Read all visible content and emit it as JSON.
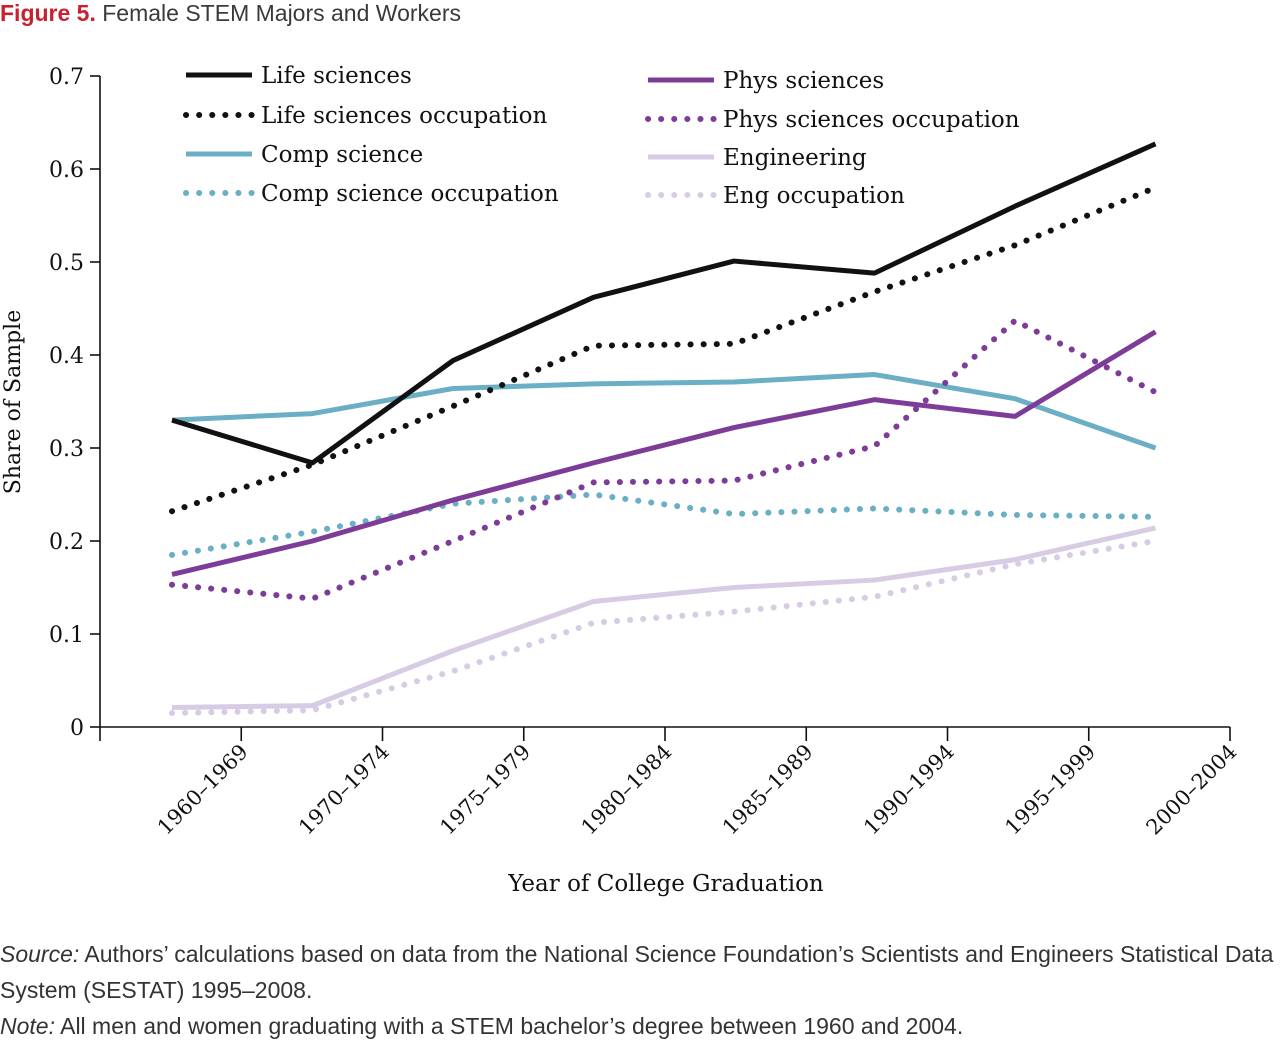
{
  "figure": {
    "number": "Figure 5.",
    "title": "Female STEM Majors and Workers"
  },
  "notes": {
    "source_label": "Source:",
    "source_text": "Authors’ calculations based on data from the National Science Foundation’s Scientists and Engineers Statistical Data System (SESTAT) 1995–2008.",
    "note_label": "Note:",
    "note_text": "All men and women graduating with a STEM bachelor’s degree between 1960 and 2004."
  },
  "chart_data": {
    "type": "line",
    "xlabel": "Year of College Graduation",
    "ylabel": "Share of Sample",
    "ylim": [
      0,
      0.7
    ],
    "yticks": [
      "0",
      "0.1",
      "0.2",
      "0.3",
      "0.4",
      "0.5",
      "0.6",
      "0.7"
    ],
    "categories": [
      "1960–1969",
      "1970–1974",
      "1975–1979",
      "1980–1984",
      "1985–1989",
      "1990–1994",
      "1995–1999",
      "2000–2004"
    ],
    "legend_position": "top",
    "grid": false,
    "series": [
      {
        "name": "Life sciences",
        "color": "#111111",
        "style": "solid",
        "values": [
          0.33,
          0.284,
          0.394,
          0.462,
          0.501,
          0.488,
          0.56,
          0.627
        ]
      },
      {
        "name": "Life sciences occupation",
        "color": "#111111",
        "style": "dotted",
        "values": [
          0.232,
          0.282,
          0.345,
          0.41,
          0.412,
          0.468,
          0.518,
          0.58
        ]
      },
      {
        "name": "Comp science",
        "color": "#6aafc3",
        "style": "solid",
        "values": [
          0.33,
          0.337,
          0.364,
          0.369,
          0.371,
          0.379,
          0.353,
          0.3
        ]
      },
      {
        "name": "Comp science occupation",
        "color": "#6aafc3",
        "style": "dotted",
        "values": [
          0.185,
          0.21,
          0.24,
          0.25,
          0.229,
          0.235,
          0.228,
          0.226
        ]
      },
      {
        "name": "Phys sciences",
        "color": "#7d3c98",
        "style": "solid",
        "values": [
          0.164,
          0.2,
          0.244,
          0.284,
          0.322,
          0.352,
          0.334,
          0.425
        ]
      },
      {
        "name": "Phys sciences occupation",
        "color": "#7d3c98",
        "style": "dotted",
        "values": [
          0.153,
          0.138,
          0.2,
          0.263,
          0.265,
          0.302,
          0.437,
          0.36
        ]
      },
      {
        "name": "Engineering",
        "color": "#d8cce4",
        "style": "solid",
        "values": [
          0.021,
          0.023,
          0.082,
          0.135,
          0.15,
          0.158,
          0.18,
          0.214
        ]
      },
      {
        "name": "Eng occupation",
        "color": "#d8cce4",
        "style": "dotted",
        "values": [
          0.015,
          0.018,
          0.06,
          0.112,
          0.124,
          0.14,
          0.175,
          0.2
        ]
      }
    ]
  }
}
